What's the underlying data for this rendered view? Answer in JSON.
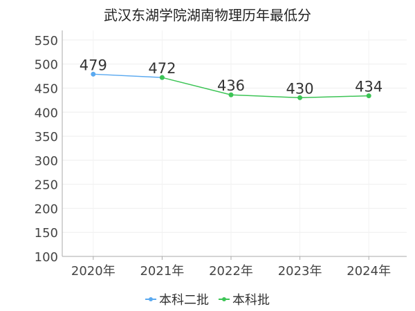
{
  "chart_data": {
    "type": "line",
    "title": "武汉东湖学院湖南物理历年最低分",
    "xlabel": "",
    "ylabel": "",
    "categories": [
      "2020年",
      "2021年",
      "2022年",
      "2023年",
      "2024年"
    ],
    "ylim": [
      100,
      570
    ],
    "yticks": [
      100,
      150,
      200,
      250,
      300,
      350,
      400,
      450,
      500,
      550
    ],
    "grid": true,
    "legend_position": "bottom",
    "series": [
      {
        "name": "本科二批",
        "color": "#5aa9f0",
        "values": [
          479,
          472,
          null,
          null,
          null
        ]
      },
      {
        "name": "本科批",
        "color": "#3cc455",
        "values": [
          null,
          472,
          436,
          430,
          434
        ]
      }
    ],
    "data_labels": [
      "479",
      "472",
      "436",
      "430",
      "434"
    ]
  }
}
